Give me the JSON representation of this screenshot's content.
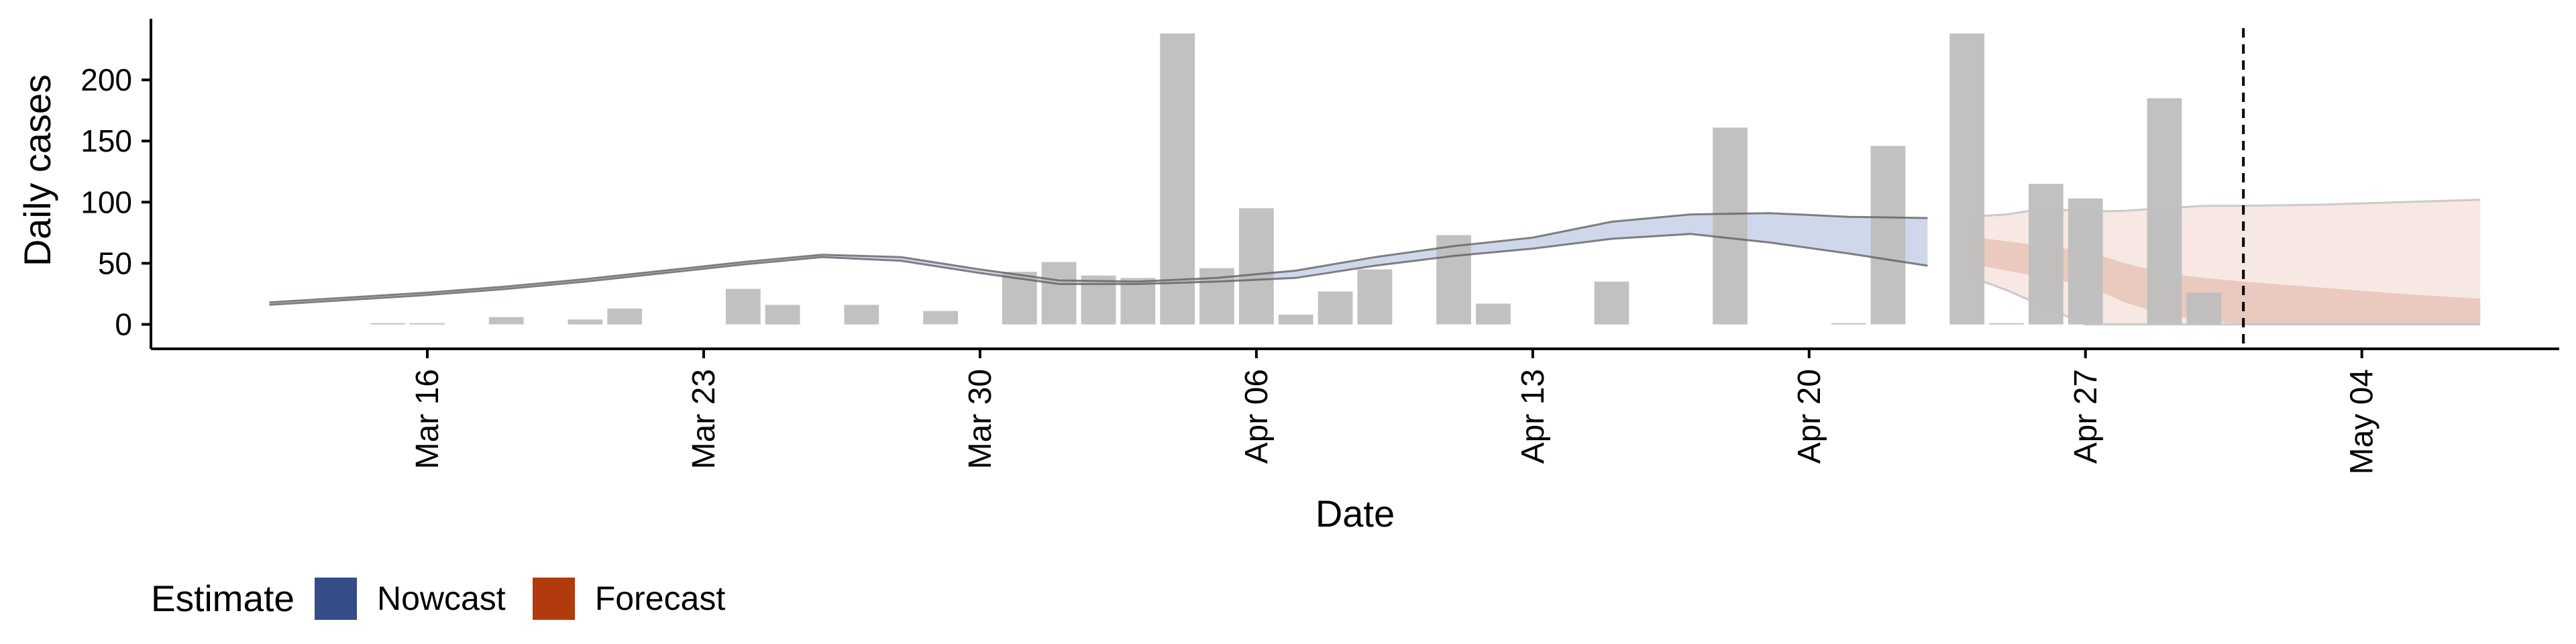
{
  "chart_data": {
    "type": "bar+ribbon",
    "xlabel": "Date",
    "ylabel": "Daily cases",
    "x_range": [
      "2020-03-09",
      "2020-05-09"
    ],
    "ylim": [
      -20,
      250
    ],
    "x_ticks": [
      {
        "date": "2020-03-16",
        "label": "Mar 16"
      },
      {
        "date": "2020-03-23",
        "label": "Mar 23"
      },
      {
        "date": "2020-03-30",
        "label": "Mar 30"
      },
      {
        "date": "2020-04-06",
        "label": "Apr 06"
      },
      {
        "date": "2020-04-13",
        "label": "Apr 13"
      },
      {
        "date": "2020-04-20",
        "label": "Apr 20"
      },
      {
        "date": "2020-04-27",
        "label": "Apr 27"
      },
      {
        "date": "2020-05-04",
        "label": "May 04"
      }
    ],
    "y_ticks": [
      0,
      50,
      100,
      150,
      200
    ],
    "forecast_start_line": "2020-05-01",
    "bars": [
      {
        "date": "2020-03-15",
        "value": 1
      },
      {
        "date": "2020-03-16",
        "value": 1
      },
      {
        "date": "2020-03-18",
        "value": 6
      },
      {
        "date": "2020-03-20",
        "value": 4
      },
      {
        "date": "2020-03-21",
        "value": 13
      },
      {
        "date": "2020-03-24",
        "value": 29
      },
      {
        "date": "2020-03-25",
        "value": 16
      },
      {
        "date": "2020-03-27",
        "value": 16
      },
      {
        "date": "2020-03-29",
        "value": 11
      },
      {
        "date": "2020-03-31",
        "value": 43
      },
      {
        "date": "2020-04-01",
        "value": 51
      },
      {
        "date": "2020-04-02",
        "value": 40
      },
      {
        "date": "2020-04-03",
        "value": 38
      },
      {
        "date": "2020-04-04",
        "value": 238
      },
      {
        "date": "2020-04-05",
        "value": 46
      },
      {
        "date": "2020-04-06",
        "value": 95
      },
      {
        "date": "2020-04-07",
        "value": 8
      },
      {
        "date": "2020-04-08",
        "value": 27
      },
      {
        "date": "2020-04-09",
        "value": 45
      },
      {
        "date": "2020-04-11",
        "value": 73
      },
      {
        "date": "2020-04-12",
        "value": 17
      },
      {
        "date": "2020-04-15",
        "value": 35
      },
      {
        "date": "2020-04-18",
        "value": 161
      },
      {
        "date": "2020-04-21",
        "value": 1
      },
      {
        "date": "2020-04-22",
        "value": 146
      },
      {
        "date": "2020-04-24",
        "value": 238
      },
      {
        "date": "2020-04-25",
        "value": 1
      },
      {
        "date": "2020-04-26",
        "value": 115
      },
      {
        "date": "2020-04-27",
        "value": 103
      },
      {
        "date": "2020-04-29",
        "value": 185
      },
      {
        "date": "2020-04-30",
        "value": 26
      }
    ],
    "estimate_band": [
      {
        "date": "2020-03-12",
        "lower": 16,
        "upper": 18
      },
      {
        "date": "2020-03-14",
        "lower": 20,
        "upper": 22
      },
      {
        "date": "2020-03-16",
        "lower": 24,
        "upper": 26
      },
      {
        "date": "2020-03-18",
        "lower": 29,
        "upper": 31
      },
      {
        "date": "2020-03-20",
        "lower": 35,
        "upper": 37
      },
      {
        "date": "2020-03-22",
        "lower": 42,
        "upper": 44
      },
      {
        "date": "2020-03-24",
        "lower": 49,
        "upper": 51
      },
      {
        "date": "2020-03-26",
        "lower": 55,
        "upper": 57
      },
      {
        "date": "2020-03-28",
        "lower": 52,
        "upper": 55
      },
      {
        "date": "2020-03-30",
        "lower": 42,
        "upper": 45
      },
      {
        "date": "2020-04-01",
        "lower": 33,
        "upper": 36
      },
      {
        "date": "2020-04-03",
        "lower": 33,
        "upper": 35
      },
      {
        "date": "2020-04-05",
        "lower": 35,
        "upper": 38
      },
      {
        "date": "2020-04-07",
        "lower": 38,
        "upper": 44
      },
      {
        "date": "2020-04-09",
        "lower": 48,
        "upper": 55
      },
      {
        "date": "2020-04-11",
        "lower": 56,
        "upper": 64
      },
      {
        "date": "2020-04-13",
        "lower": 62,
        "upper": 71
      },
      {
        "date": "2020-04-15",
        "lower": 70,
        "upper": 84
      },
      {
        "date": "2020-04-17",
        "lower": 74,
        "upper": 90
      },
      {
        "date": "2020-04-19",
        "lower": 67,
        "upper": 91
      },
      {
        "date": "2020-04-21",
        "lower": 58,
        "upper": 88
      },
      {
        "date": "2020-04-23",
        "lower": 48,
        "upper": 87
      }
    ],
    "forecast_band_outer": [
      {
        "date": "2020-04-24",
        "lower": 40,
        "upper": 88
      },
      {
        "date": "2020-04-25",
        "lower": 28,
        "upper": 90
      },
      {
        "date": "2020-04-26",
        "lower": 14,
        "upper": 95
      },
      {
        "date": "2020-04-27",
        "lower": 0,
        "upper": 92
      },
      {
        "date": "2020-04-28",
        "lower": 0,
        "upper": 93
      },
      {
        "date": "2020-04-29",
        "lower": 0,
        "upper": 95
      },
      {
        "date": "2020-04-30",
        "lower": 0,
        "upper": 97
      },
      {
        "date": "2020-05-01",
        "lower": 0,
        "upper": 97
      },
      {
        "date": "2020-05-03",
        "lower": 0,
        "upper": 98
      },
      {
        "date": "2020-05-05",
        "lower": 0,
        "upper": 100
      },
      {
        "date": "2020-05-07",
        "lower": 0,
        "upper": 102
      }
    ],
    "forecast_band_inner": [
      {
        "date": "2020-04-24",
        "lower": 50,
        "upper": 72
      },
      {
        "date": "2020-04-25",
        "lower": 44,
        "upper": 68
      },
      {
        "date": "2020-04-26",
        "lower": 38,
        "upper": 64
      },
      {
        "date": "2020-04-27",
        "lower": 32,
        "upper": 60
      },
      {
        "date": "2020-04-28",
        "lower": 18,
        "upper": 50
      },
      {
        "date": "2020-04-29",
        "lower": 8,
        "upper": 42
      },
      {
        "date": "2020-04-30",
        "lower": 3,
        "upper": 38
      },
      {
        "date": "2020-05-01",
        "lower": 0,
        "upper": 35
      },
      {
        "date": "2020-05-03",
        "lower": 0,
        "upper": 30
      },
      {
        "date": "2020-05-05",
        "lower": 0,
        "upper": 25
      },
      {
        "date": "2020-05-07",
        "lower": 0,
        "upper": 21
      }
    ],
    "legend": {
      "title": "Estimate",
      "position": "bottom-left",
      "items": [
        {
          "label": "Nowcast",
          "color": "#354c88"
        },
        {
          "label": "Forecast",
          "color": "#b13b0c"
        }
      ]
    },
    "colors": {
      "bars": "#bebebe",
      "estimate_line": "#5a5a5a",
      "nowcast_fill": "#c7d1e8",
      "forecast_fill_outer": "#f6e6e0",
      "forecast_fill_inner": "#e6c2b4",
      "forecast_edge": "#bfbfbf"
    }
  }
}
